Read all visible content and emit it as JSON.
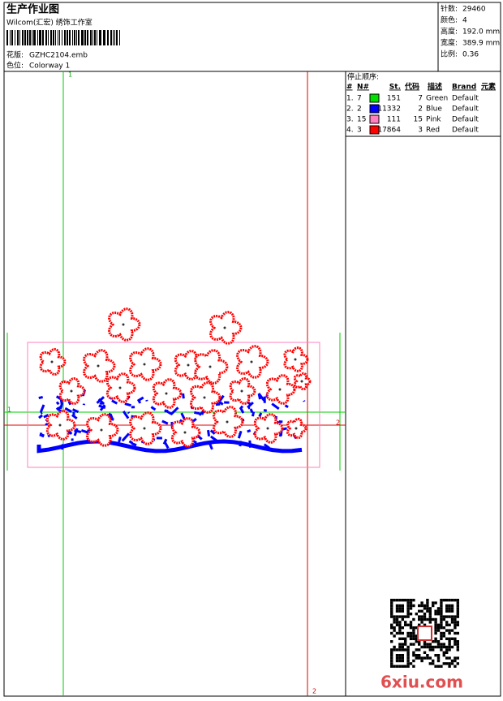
{
  "header": {
    "title": "生产作业图",
    "studio": "Wilcom(汇宏) 绣饰工作室",
    "design_label": "花版:",
    "design": "GZHC2104.emb",
    "colorway_label": "色位:",
    "colorway": "Colorway 1"
  },
  "info": [
    {
      "label": "针数:",
      "value": "29460"
    },
    {
      "label": "颜色:",
      "value": "4"
    },
    {
      "label": "高度:",
      "value": "192.0 mm"
    },
    {
      "label": "宽度:",
      "value": "389.9 mm"
    },
    {
      "label": "比例:",
      "value": "0.36"
    }
  ],
  "stop_sequence": {
    "title": "停止顺序:",
    "columns": [
      "#",
      "N#",
      "St.",
      "代码",
      "描述",
      "Brand",
      "元素"
    ],
    "rows": [
      {
        "index": "1.",
        "number": "7",
        "color": "#00e000",
        "stitches": "151",
        "code": "7",
        "description": "Green",
        "brand": "Default"
      },
      {
        "index": "2.",
        "number": "2",
        "color": "#0000ff",
        "stitches": "11332",
        "code": "2",
        "description": "Blue",
        "brand": "Default"
      },
      {
        "index": "3.",
        "number": "15",
        "color": "#ff80c0",
        "stitches": "111",
        "code": "15",
        "description": "Pink",
        "brand": "Default"
      },
      {
        "index": "4.",
        "number": "3",
        "color": "#ff0000",
        "stitches": "17864",
        "code": "3",
        "description": "Red",
        "brand": "Default"
      }
    ]
  },
  "markers": [
    "1",
    "1",
    "2",
    "2"
  ],
  "watermark": "6xiu.com"
}
